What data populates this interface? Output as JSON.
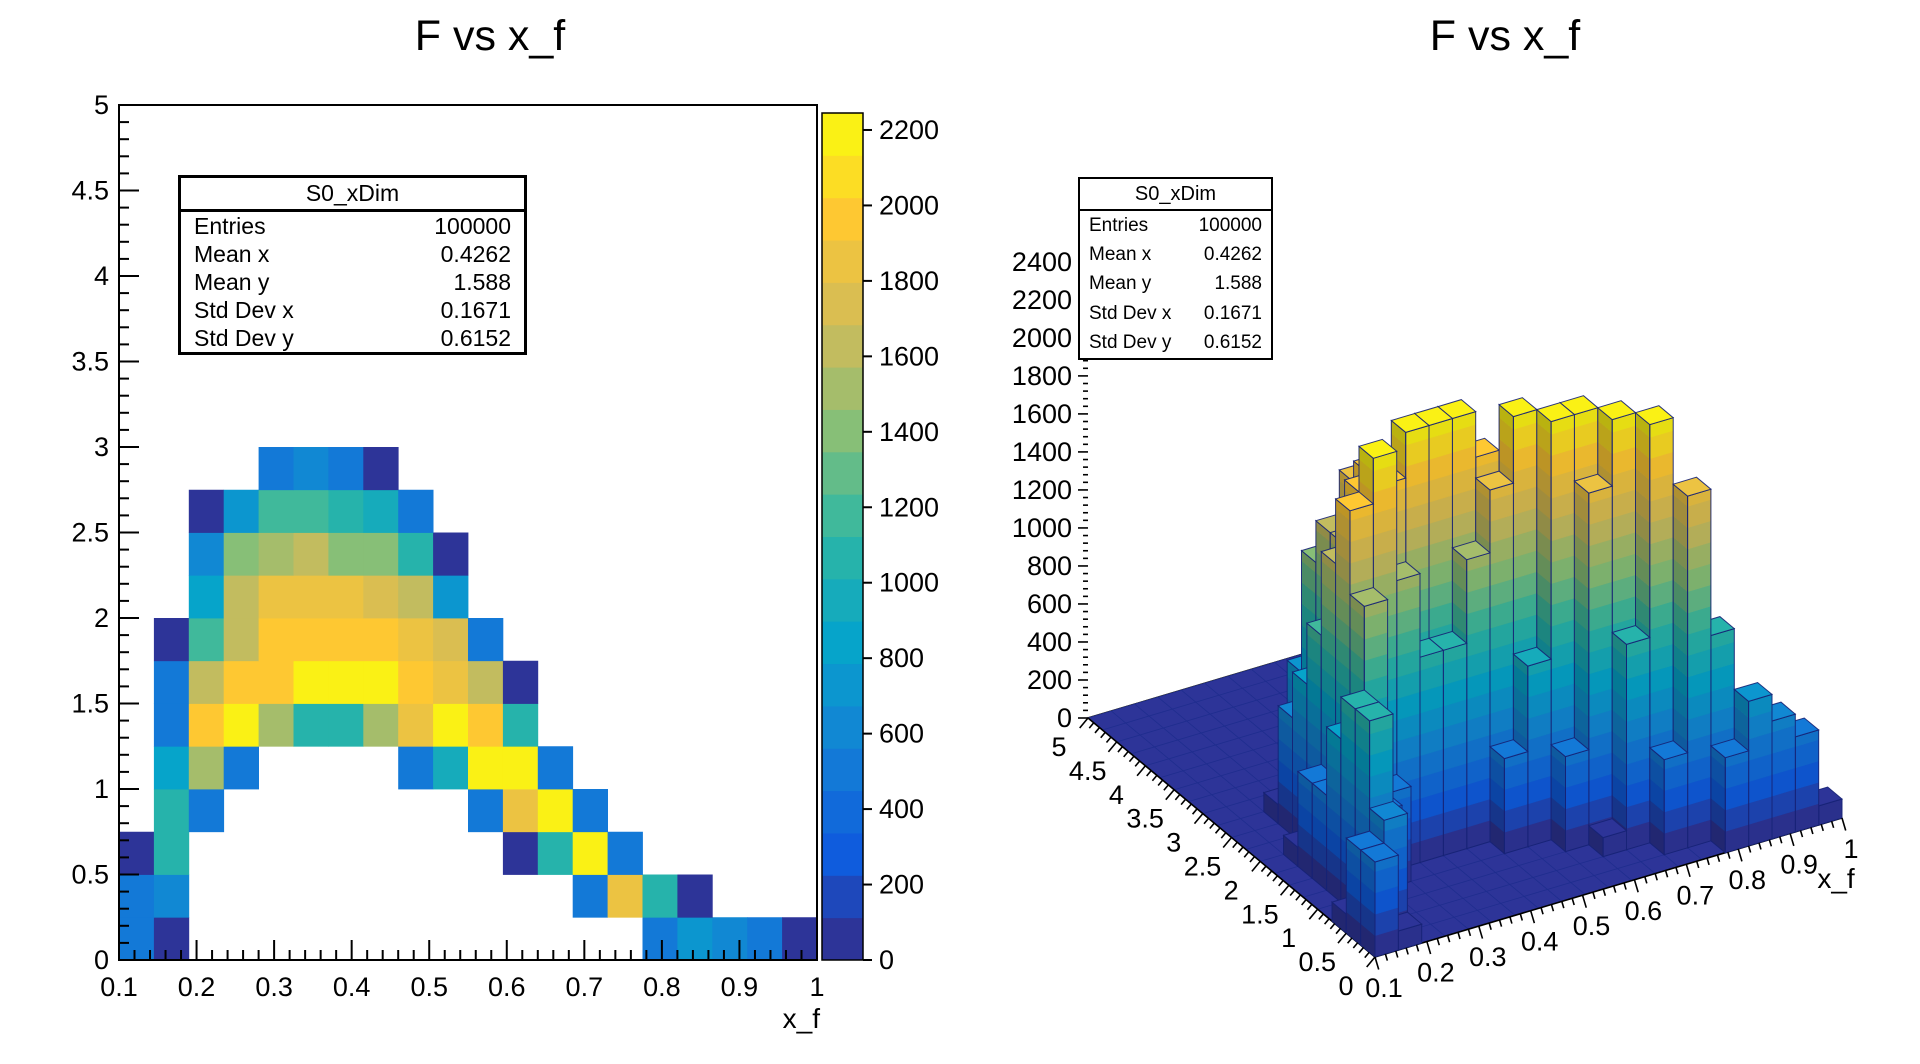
{
  "left_panel": {
    "title": "F vs x_f",
    "xlabel": "x_f",
    "x_tick_labels": [
      "0.1",
      "0.2",
      "0.3",
      "0.4",
      "0.5",
      "0.6",
      "0.7",
      "0.8",
      "0.9",
      "1"
    ],
    "y_tick_labels": [
      "0",
      "0.5",
      "1",
      "1.5",
      "2",
      "2.5",
      "3",
      "3.5",
      "4",
      "4.5",
      "5"
    ],
    "palette_tick_labels": [
      "0",
      "200",
      "400",
      "600",
      "800",
      "1000",
      "1200",
      "1400",
      "1600",
      "1800",
      "2000",
      "2200"
    ]
  },
  "right_panel": {
    "title": "F vs x_f",
    "xlabel": "x_f",
    "x_tick_labels": [
      "0.1",
      "0.2",
      "0.3",
      "0.4",
      "0.5",
      "0.6",
      "0.7",
      "0.8",
      "0.9",
      "1"
    ],
    "y_tick_labels": [
      "0",
      "0.5",
      "1",
      "1.5",
      "2",
      "2.5",
      "3",
      "3.5",
      "4",
      "4.5",
      "5"
    ],
    "z_tick_labels": [
      "0",
      "200",
      "400",
      "600",
      "800",
      "1000",
      "1200",
      "1400",
      "1600",
      "1800",
      "2000",
      "2200",
      "2400"
    ]
  },
  "stats_box": {
    "title": "S0_xDim",
    "rows": [
      {
        "label": "Entries",
        "value": "100000"
      },
      {
        "label": "Mean x",
        "value": "0.4262"
      },
      {
        "label": "Mean y",
        "value": "1.588"
      },
      {
        "label": "Std Dev x",
        "value": "0.1671"
      },
      {
        "label": "Std Dev y",
        "value": "0.6152"
      }
    ]
  },
  "palette": {
    "name": "root-bird",
    "levels": 20,
    "stops": [
      0,
      0.125,
      0.25,
      0.375,
      0.5,
      0.625,
      0.75,
      0.875,
      1
    ],
    "red": [
      0.2082,
      0.0592,
      0.078,
      0.0232,
      0.1802,
      0.5301,
      0.8186,
      0.9956,
      0.9764
    ],
    "green": [
      0.1664,
      0.3599,
      0.5041,
      0.6419,
      0.7178,
      0.7492,
      0.7328,
      0.7862,
      0.9832
    ],
    "blue": [
      0.5293,
      0.8684,
      0.8385,
      0.7914,
      0.6425,
      0.4662,
      0.3499,
      0.1968,
      0.0539
    ]
  },
  "chart_data": {
    "type": "heatmap",
    "panels": [
      "2d-colz-histogram",
      "3d-lego-histogram"
    ],
    "title": "F vs x_f",
    "xlabel": "x_f",
    "ylabel": "",
    "x_range": [
      0.1,
      1.0
    ],
    "y_range": [
      0,
      5
    ],
    "nx_bins": 20,
    "ny_bins": 20,
    "x_bin_width": 0.045,
    "y_bin_width": 0.25,
    "zmax": 2245,
    "lego_z_axis_max": 2494,
    "z_tick_step": 200,
    "bins_format": "[x_bin_index, y_bin_index, counts] ; x = 0.1 + 0.045*i, y = 0.25*j",
    "bins": [
      [
        0,
        0,
        500
      ],
      [
        1,
        0,
        100
      ],
      [
        15,
        0,
        500
      ],
      [
        16,
        0,
        760
      ],
      [
        17,
        0,
        620
      ],
      [
        18,
        0,
        500
      ],
      [
        19,
        0,
        100
      ],
      [
        0,
        1,
        500
      ],
      [
        1,
        1,
        620
      ],
      [
        13,
        1,
        500
      ],
      [
        14,
        1,
        1850
      ],
      [
        15,
        1,
        1080
      ],
      [
        16,
        1,
        100
      ],
      [
        0,
        2,
        100
      ],
      [
        1,
        2,
        1080
      ],
      [
        11,
        2,
        100
      ],
      [
        12,
        2,
        1080
      ],
      [
        13,
        2,
        2200
      ],
      [
        14,
        2,
        500
      ],
      [
        1,
        3,
        1080
      ],
      [
        2,
        3,
        500
      ],
      [
        10,
        3,
        500
      ],
      [
        11,
        3,
        1850
      ],
      [
        12,
        3,
        2200
      ],
      [
        13,
        3,
        500
      ],
      [
        1,
        4,
        860
      ],
      [
        2,
        4,
        1520
      ],
      [
        3,
        4,
        500
      ],
      [
        8,
        4,
        500
      ],
      [
        9,
        4,
        950
      ],
      [
        10,
        4,
        2200
      ],
      [
        11,
        4,
        2200
      ],
      [
        12,
        4,
        500
      ],
      [
        1,
        5,
        500
      ],
      [
        2,
        5,
        1960
      ],
      [
        3,
        5,
        2200
      ],
      [
        4,
        5,
        1520
      ],
      [
        5,
        5,
        1080
      ],
      [
        6,
        5,
        1080
      ],
      [
        7,
        5,
        1520
      ],
      [
        8,
        5,
        1850
      ],
      [
        9,
        5,
        2200
      ],
      [
        10,
        5,
        1960
      ],
      [
        11,
        5,
        1080
      ],
      [
        1,
        6,
        500
      ],
      [
        2,
        6,
        1620
      ],
      [
        3,
        6,
        1960
      ],
      [
        4,
        6,
        1960
      ],
      [
        5,
        6,
        2200
      ],
      [
        6,
        6,
        2200
      ],
      [
        7,
        6,
        2200
      ],
      [
        8,
        6,
        1960
      ],
      [
        9,
        6,
        1850
      ],
      [
        10,
        6,
        1620
      ],
      [
        11,
        6,
        100
      ],
      [
        1,
        7,
        100
      ],
      [
        2,
        7,
        1180
      ],
      [
        3,
        7,
        1620
      ],
      [
        4,
        7,
        1960
      ],
      [
        5,
        7,
        1960
      ],
      [
        6,
        7,
        1960
      ],
      [
        7,
        7,
        1960
      ],
      [
        8,
        7,
        1850
      ],
      [
        9,
        7,
        1750
      ],
      [
        10,
        7,
        500
      ],
      [
        2,
        8,
        860
      ],
      [
        3,
        8,
        1620
      ],
      [
        4,
        8,
        1850
      ],
      [
        5,
        8,
        1850
      ],
      [
        6,
        8,
        1850
      ],
      [
        7,
        8,
        1750
      ],
      [
        8,
        8,
        1620
      ],
      [
        9,
        8,
        760
      ],
      [
        2,
        9,
        620
      ],
      [
        3,
        9,
        1400
      ],
      [
        4,
        9,
        1520
      ],
      [
        5,
        9,
        1620
      ],
      [
        6,
        9,
        1400
      ],
      [
        7,
        9,
        1400
      ],
      [
        8,
        9,
        1080
      ],
      [
        9,
        9,
        100
      ],
      [
        2,
        10,
        100
      ],
      [
        3,
        10,
        760
      ],
      [
        4,
        10,
        1180
      ],
      [
        5,
        10,
        1180
      ],
      [
        6,
        10,
        1080
      ],
      [
        7,
        10,
        950
      ],
      [
        8,
        10,
        500
      ],
      [
        4,
        11,
        500
      ],
      [
        5,
        11,
        620
      ],
      [
        6,
        11,
        500
      ],
      [
        7,
        11,
        100
      ]
    ]
  }
}
